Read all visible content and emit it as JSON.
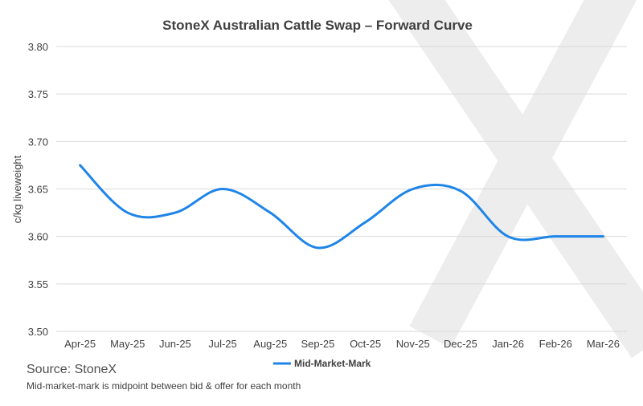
{
  "colors": {
    "series": "#1F85E8",
    "grid": "#D9D9D9",
    "watermark": "#EDEDED",
    "text": "#404040"
  },
  "watermark": {
    "icon": "stonex-x-logo"
  },
  "source": "Source: StoneX",
  "note": "Mid-market-mark is midpoint between bid & offer for each month",
  "chart_data": {
    "type": "line",
    "title": "StoneX Australian Cattle Swap – Forward Curve",
    "xlabel": "",
    "ylabel": "c/kg liveweight",
    "ylim": [
      3.5,
      3.8
    ],
    "yticks": [
      3.5,
      3.55,
      3.6,
      3.65,
      3.7,
      3.75,
      3.8
    ],
    "ytick_labels": [
      "3.50",
      "3.55",
      "3.60",
      "3.65",
      "3.70",
      "3.75",
      "3.80"
    ],
    "categories": [
      "Apr-25",
      "May-25",
      "Jun-25",
      "Jul-25",
      "Aug-25",
      "Sep-25",
      "Oct-25",
      "Nov-25",
      "Dec-25",
      "Jan-26",
      "Feb-26",
      "Mar-26"
    ],
    "grid": true,
    "legend_position": "bottom",
    "series": [
      {
        "name": "Mid-Market-Mark",
        "values": [
          3.675,
          3.625,
          3.625,
          3.65,
          3.625,
          3.588,
          3.615,
          3.65,
          3.648,
          3.6,
          3.6,
          3.6
        ]
      }
    ]
  }
}
